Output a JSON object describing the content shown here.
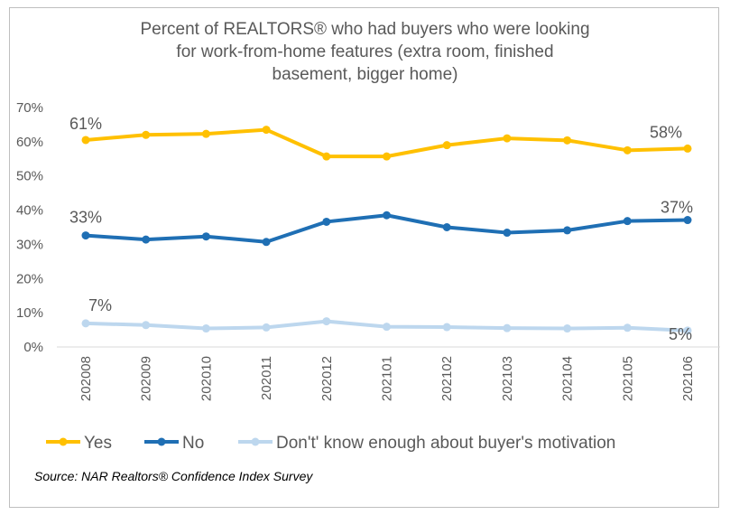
{
  "title_lines": [
    "Percent of REALTORS® who had buyers who were looking",
    "for work-from-home features (extra room, finished",
    "basement, bigger home)"
  ],
  "source": "Source: NAR Realtors® Confidence Index Survey",
  "colors": {
    "yes": "#FFC000",
    "no": "#1F6FB4",
    "unknown": "#BDD7EE",
    "axis_text": "#595959"
  },
  "chart_data": {
    "type": "line",
    "title": "Percent of REALTORS® who had buyers who were looking for work-from-home features (extra room, finished basement, bigger home)",
    "categories": [
      "202008",
      "202009",
      "202010",
      "202011",
      "202012",
      "202101",
      "202102",
      "202103",
      "202104",
      "202105",
      "202106"
    ],
    "ylim": [
      0,
      70
    ],
    "yticks": [
      0,
      10,
      20,
      30,
      40,
      50,
      60,
      70
    ],
    "ytick_labels": [
      "0%",
      "10%",
      "20%",
      "30%",
      "40%",
      "50%",
      "60%",
      "70%"
    ],
    "grid": false,
    "legend": "bottom",
    "series": [
      {
        "key": "yes",
        "name": "Yes",
        "values": [
          60.5,
          62,
          62.3,
          63.5,
          55.7,
          55.7,
          59,
          61,
          60.4,
          57.5,
          58
        ],
        "labels": [
          "61%",
          "58%"
        ]
      },
      {
        "key": "no",
        "name": "No",
        "values": [
          32.6,
          31.4,
          32.3,
          30.7,
          36.6,
          38.5,
          35,
          33.4,
          34.1,
          36.8,
          37.1
        ],
        "labels": [
          "33%",
          "37%"
        ]
      },
      {
        "key": "unknown",
        "name": "Don't' know enough about buyer's motivation",
        "values": [
          6.9,
          6.4,
          5.4,
          5.7,
          7.5,
          5.9,
          5.8,
          5.5,
          5.4,
          5.6,
          4.8
        ],
        "labels": [
          "7%",
          "5%"
        ]
      }
    ]
  }
}
